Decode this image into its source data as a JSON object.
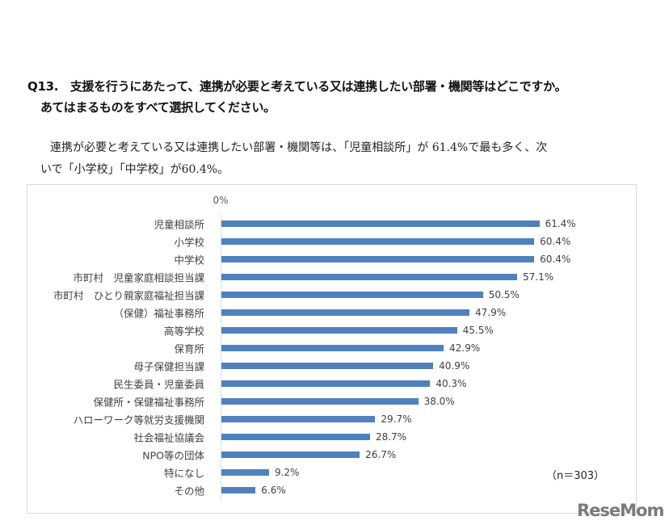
{
  "question": {
    "line1": "Q13.　支援を行うにあたって、連携が必要と考えている又は連携したい部署・機関等はどこですか。",
    "line2": "あてはまるものをすべて選択してください。"
  },
  "summary": {
    "line1": "連携が必要と考えている又は連携したい部署・機関等は、「児童相談所」が 61.4%で最も多く、次",
    "line2": "いで「小学校」「中学校」が60.4%。"
  },
  "chart_data": {
    "type": "bar",
    "orientation": "horizontal",
    "categories": [
      "児童相談所",
      "小学校",
      "中学校",
      "市町村　児童家庭相談担当課",
      "市町村　ひとり親家庭福祉担当課",
      "（保健）福祉事務所",
      "高等学校",
      "保育所",
      "母子保健担当課",
      "民生委員・児童委員",
      "保健所・保健福祉事務所",
      "ハローワーク等就労支援機関",
      "社会福祉協議会",
      "NPO等の団体",
      "特になし",
      "その他"
    ],
    "values": [
      61.4,
      60.4,
      60.4,
      57.1,
      50.5,
      47.9,
      45.5,
      42.9,
      40.9,
      40.3,
      38.0,
      29.7,
      28.7,
      26.7,
      9.2,
      6.6
    ],
    "labels": [
      "61.4%",
      "60.4%",
      "60.4%",
      "57.1%",
      "50.5%",
      "47.9%",
      "45.5%",
      "42.9%",
      "40.9%",
      "40.3%",
      "38.0%",
      "29.7%",
      "28.7%",
      "26.7%",
      "9.2%",
      "6.6%"
    ],
    "xticks": [
      "0%",
      "10%",
      "20%",
      "30%",
      "40%",
      "50%",
      "60%",
      "70%"
    ],
    "xlim": [
      0,
      70
    ],
    "grid": true,
    "bar_color": "#4f81bd",
    "annotation": "（n＝303）"
  },
  "watermark": "ReseMom"
}
